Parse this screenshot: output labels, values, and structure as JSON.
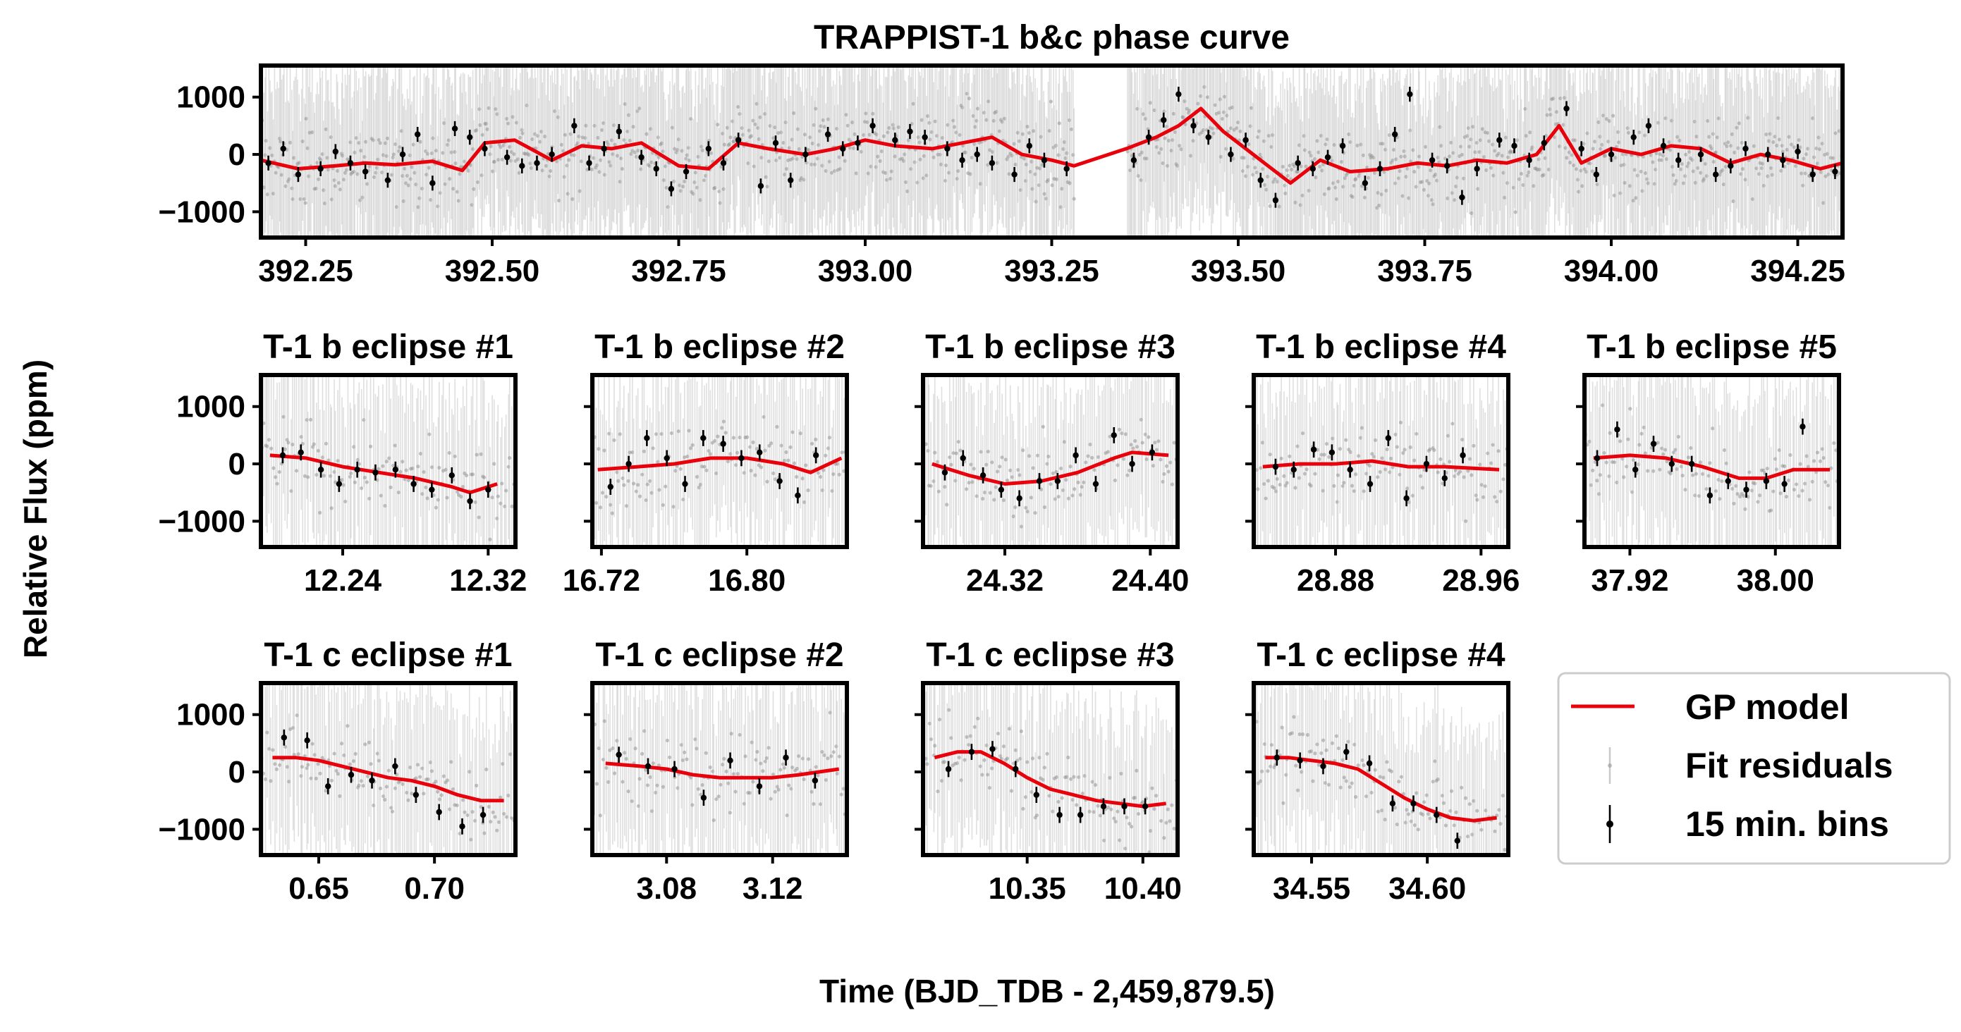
{
  "figure": {
    "y_label": "Relative Flux (ppm)",
    "x_label": "Time (BJD_TDB - 2,459,879.5)"
  },
  "colors": {
    "gp_model": "#e8000b",
    "residuals": "#999999",
    "bins": "#000000",
    "axes": "#000000"
  },
  "legend": {
    "position": "right of bottom row",
    "items": [
      {
        "label": "GP model",
        "kind": "line"
      },
      {
        "label": "Fit residuals",
        "kind": "residual"
      },
      {
        "label": "15 min. bins",
        "kind": "bin"
      }
    ]
  },
  "chart_data": [
    {
      "type": "scatter",
      "title": "TRAPPIST-1 b&c phase curve",
      "xlim": [
        392.19,
        394.31
      ],
      "ylim": [
        -1450,
        1550
      ],
      "xticks": [
        392.25,
        392.5,
        392.75,
        393.0,
        393.25,
        393.5,
        393.75,
        394.0,
        394.25
      ],
      "xtick_labels": [
        "392.25",
        "392.50",
        "392.75",
        "393.00",
        "393.25",
        "393.50",
        "393.75",
        "394.00",
        "394.25"
      ],
      "yticks": [
        1000,
        0,
        -1000
      ],
      "ytick_labels": [
        "1000",
        "0",
        "−1000"
      ],
      "gap": [
        393.28,
        393.35
      ],
      "gp_model": {
        "x": [
          392.19,
          392.24,
          392.29,
          392.33,
          392.37,
          392.42,
          392.46,
          392.49,
          392.53,
          392.58,
          392.62,
          392.66,
          392.7,
          392.75,
          392.79,
          392.83,
          392.87,
          392.92,
          392.96,
          393.0,
          393.04,
          393.09,
          393.13,
          393.17,
          393.21,
          393.25,
          393.28,
          393.35,
          393.39,
          393.42,
          393.45,
          393.48,
          393.51,
          393.54,
          393.57,
          393.61,
          393.65,
          393.7,
          393.74,
          393.78,
          393.82,
          393.86,
          393.9,
          393.93,
          393.96,
          394.0,
          394.04,
          394.08,
          394.12,
          394.16,
          394.2,
          394.24,
          394.28,
          394.31
        ],
        "y": [
          -100,
          -250,
          -200,
          -150,
          -180,
          -120,
          -280,
          200,
          250,
          -100,
          150,
          100,
          200,
          -200,
          -250,
          200,
          100,
          0,
          100,
          250,
          150,
          100,
          200,
          300,
          0,
          -100,
          -200,
          100,
          300,
          500,
          800,
          400,
          100,
          -200,
          -500,
          -100,
          -300,
          -250,
          -150,
          -200,
          -100,
          -150,
          0,
          500,
          -150,
          100,
          0,
          150,
          100,
          -150,
          0,
          -100,
          -250,
          -150
        ]
      },
      "bins": {
        "x": [
          392.2,
          392.22,
          392.24,
          392.27,
          392.29,
          392.31,
          392.33,
          392.36,
          392.38,
          392.4,
          392.42,
          392.45,
          392.47,
          392.49,
          392.52,
          392.54,
          392.56,
          392.58,
          392.61,
          392.63,
          392.65,
          392.67,
          392.7,
          392.72,
          392.74,
          392.76,
          392.79,
          392.81,
          392.83,
          392.86,
          392.88,
          392.9,
          392.92,
          392.95,
          392.97,
          392.99,
          393.01,
          393.04,
          393.06,
          393.08,
          393.11,
          393.13,
          393.15,
          393.17,
          393.2,
          393.22,
          393.24,
          393.27,
          393.36,
          393.38,
          393.4,
          393.42,
          393.44,
          393.46,
          393.49,
          393.51,
          393.53,
          393.55,
          393.58,
          393.6,
          393.62,
          393.64,
          393.67,
          393.69,
          393.71,
          393.73,
          393.76,
          393.78,
          393.8,
          393.82,
          393.85,
          393.87,
          393.89,
          393.91,
          393.94,
          393.96,
          393.98,
          394.0,
          394.03,
          394.05,
          394.07,
          394.09,
          394.12,
          394.14,
          394.16,
          394.18,
          394.21,
          394.23,
          394.25,
          394.27,
          394.3
        ],
        "y": [
          -150,
          100,
          -350,
          -250,
          50,
          -150,
          -300,
          -450,
          0,
          350,
          -500,
          450,
          300,
          100,
          -50,
          -200,
          -150,
          0,
          500,
          -150,
          100,
          400,
          -50,
          -250,
          -600,
          -300,
          100,
          -150,
          250,
          -550,
          200,
          -450,
          0,
          350,
          100,
          200,
          500,
          250,
          400,
          300,
          100,
          -100,
          0,
          -150,
          -350,
          150,
          -100,
          -250,
          -100,
          300,
          600,
          1050,
          500,
          300,
          0,
          250,
          -450,
          -800,
          -150,
          -250,
          -50,
          150,
          -500,
          -250,
          350,
          1050,
          -100,
          -200,
          -750,
          -250,
          250,
          150,
          -100,
          200,
          800,
          100,
          -350,
          0,
          300,
          500,
          150,
          -100,
          0,
          -350,
          -200,
          100,
          0,
          -100,
          50,
          -350,
          -300
        ]
      }
    },
    {
      "type": "scatter",
      "title": "T-1 b eclipse #1",
      "xlim": [
        12.195,
        12.335
      ],
      "ylim": [
        -1450,
        1550
      ],
      "xticks": [
        12.24,
        12.32
      ],
      "xtick_labels": [
        "12.24",
        "12.32"
      ],
      "yticks": [
        1000,
        0,
        -1000
      ],
      "ytick_labels": [
        "1000",
        "0",
        "−1000"
      ],
      "gp_model": {
        "x": [
          12.2,
          12.22,
          12.24,
          12.26,
          12.28,
          12.3,
          12.31,
          12.325
        ],
        "y": [
          150,
          100,
          -50,
          -150,
          -250,
          -400,
          -500,
          -350
        ]
      },
      "bins": {
        "x": [
          12.207,
          12.217,
          12.228,
          12.238,
          12.248,
          12.258,
          12.269,
          12.279,
          12.289,
          12.3,
          12.31,
          12.32
        ],
        "y": [
          150,
          200,
          -100,
          -350,
          -100,
          -150,
          -100,
          -350,
          -450,
          -200,
          -650,
          -450
        ]
      }
    },
    {
      "type": "scatter",
      "title": "T-1 b eclipse #2",
      "xlim": [
        16.715,
        16.855
      ],
      "ylim": [
        -1450,
        1550
      ],
      "xticks": [
        16.72,
        16.8
      ],
      "xtick_labels": [
        "16.72",
        "16.80"
      ],
      "yticks": [
        1000,
        0,
        -1000
      ],
      "ytick_labels": [],
      "gp_model": {
        "x": [
          16.718,
          16.74,
          16.76,
          16.78,
          16.8,
          16.82,
          16.835,
          16.852
        ],
        "y": [
          -100,
          -50,
          0,
          100,
          100,
          0,
          -150,
          100
        ]
      },
      "bins": {
        "x": [
          16.725,
          16.735,
          16.745,
          16.756,
          16.766,
          16.776,
          16.787,
          16.797,
          16.807,
          16.818,
          16.828,
          16.838
        ],
        "y": [
          -400,
          0,
          450,
          100,
          -350,
          450,
          350,
          100,
          200,
          -300,
          -550,
          150
        ]
      }
    },
    {
      "type": "scatter",
      "title": "T-1 b eclipse #3",
      "xlim": [
        24.275,
        24.415
      ],
      "ylim": [
        -1450,
        1550
      ],
      "xticks": [
        24.32,
        24.4
      ],
      "xtick_labels": [
        "24.32",
        "24.40"
      ],
      "yticks": [
        1000,
        0,
        -1000
      ],
      "ytick_labels": [],
      "gp_model": {
        "x": [
          24.28,
          24.3,
          24.32,
          24.34,
          24.36,
          24.38,
          24.39,
          24.41
        ],
        "y": [
          0,
          -200,
          -350,
          -300,
          -150,
          100,
          200,
          150
        ]
      },
      "bins": {
        "x": [
          24.287,
          24.297,
          24.308,
          24.318,
          24.328,
          24.339,
          24.349,
          24.359,
          24.37,
          24.38,
          24.39,
          24.401
        ],
        "y": [
          -150,
          100,
          -200,
          -450,
          -600,
          -300,
          -300,
          150,
          -350,
          500,
          0,
          200
        ]
      }
    },
    {
      "type": "scatter",
      "title": "T-1 b eclipse #4",
      "xlim": [
        28.835,
        28.975
      ],
      "ylim": [
        -1450,
        1550
      ],
      "xticks": [
        28.88,
        28.96
      ],
      "xtick_labels": [
        "28.88",
        "28.96"
      ],
      "yticks": [
        1000,
        0,
        -1000
      ],
      "ytick_labels": [],
      "gp_model": {
        "x": [
          28.84,
          28.86,
          28.88,
          28.9,
          28.92,
          28.94,
          28.97
        ],
        "y": [
          -50,
          0,
          0,
          50,
          -50,
          -50,
          -100
        ]
      },
      "bins": {
        "x": [
          28.847,
          28.857,
          28.868,
          28.878,
          28.888,
          28.899,
          28.909,
          28.919,
          28.93,
          28.94,
          28.95
        ],
        "y": [
          -50,
          -100,
          250,
          200,
          -100,
          -350,
          450,
          -600,
          0,
          -250,
          150
        ]
      }
    },
    {
      "type": "scatter",
      "title": "T-1 b eclipse #5",
      "xlim": [
        37.895,
        38.035
      ],
      "ylim": [
        -1450,
        1550
      ],
      "xticks": [
        37.92,
        38.0
      ],
      "xtick_labels": [
        "37.92",
        "38.00"
      ],
      "yticks": [
        1000,
        0,
        -1000
      ],
      "ytick_labels": [],
      "gp_model": {
        "x": [
          37.9,
          37.92,
          37.94,
          37.96,
          37.98,
          37.995,
          38.01,
          38.03
        ],
        "y": [
          100,
          150,
          100,
          -50,
          -250,
          -250,
          -100,
          -100
        ]
      },
      "bins": {
        "x": [
          37.902,
          37.913,
          37.923,
          37.933,
          37.943,
          37.954,
          37.964,
          37.974,
          37.984,
          37.995,
          38.005,
          38.015
        ],
        "y": [
          100,
          600,
          -100,
          350,
          0,
          0,
          -550,
          -300,
          -450,
          -300,
          -350,
          650
        ]
      }
    },
    {
      "type": "scatter",
      "title": "T-1 c eclipse #1",
      "xlim": [
        0.625,
        0.735
      ],
      "ylim": [
        -1450,
        1550
      ],
      "xticks": [
        0.65,
        0.7
      ],
      "xtick_labels": [
        "0.65",
        "0.70"
      ],
      "yticks": [
        1000,
        0,
        -1000
      ],
      "ytick_labels": [
        "1000",
        "0",
        "−1000"
      ],
      "gp_model": {
        "x": [
          0.63,
          0.64,
          0.65,
          0.66,
          0.67,
          0.68,
          0.69,
          0.7,
          0.71,
          0.72,
          0.73
        ],
        "y": [
          250,
          250,
          200,
          100,
          0,
          -100,
          -150,
          -250,
          -400,
          -500,
          -500
        ]
      },
      "bins": {
        "x": [
          0.635,
          0.645,
          0.654,
          0.664,
          0.673,
          0.683,
          0.692,
          0.702,
          0.712,
          0.721
        ],
        "y": [
          600,
          550,
          -250,
          -50,
          -150,
          100,
          -400,
          -700,
          -950,
          -750
        ]
      }
    },
    {
      "type": "scatter",
      "title": "T-1 c eclipse #2",
      "xlim": [
        3.052,
        3.148
      ],
      "ylim": [
        -1450,
        1550
      ],
      "xticks": [
        3.08,
        3.12
      ],
      "xtick_labels": [
        "3.08",
        "3.12"
      ],
      "yticks": [
        1000,
        0,
        -1000
      ],
      "ytick_labels": [],
      "gp_model": {
        "x": [
          3.057,
          3.07,
          3.08,
          3.09,
          3.1,
          3.11,
          3.12,
          3.13,
          3.145
        ],
        "y": [
          150,
          100,
          50,
          -50,
          -100,
          -100,
          -100,
          -50,
          50
        ]
      },
      "bins": {
        "x": [
          3.062,
          3.073,
          3.083,
          3.094,
          3.104,
          3.115,
          3.125,
          3.136
        ],
        "y": [
          300,
          100,
          50,
          -450,
          200,
          -250,
          250,
          -150
        ]
      }
    },
    {
      "type": "scatter",
      "title": "T-1 c eclipse #3",
      "xlim": [
        10.305,
        10.415
      ],
      "ylim": [
        -1450,
        1550
      ],
      "xticks": [
        10.35,
        10.4
      ],
      "xtick_labels": [
        "10.35",
        "10.40"
      ],
      "yticks": [
        1000,
        0,
        -1000
      ],
      "ytick_labels": [],
      "gp_model": {
        "x": [
          10.31,
          10.32,
          10.33,
          10.34,
          10.35,
          10.36,
          10.37,
          10.38,
          10.39,
          10.4,
          10.41
        ],
        "y": [
          250,
          350,
          350,
          150,
          -100,
          -300,
          -400,
          -500,
          -550,
          -600,
          -550
        ]
      },
      "bins": {
        "x": [
          10.316,
          10.326,
          10.335,
          10.345,
          10.354,
          10.364,
          10.373,
          10.383,
          10.392,
          10.401
        ],
        "y": [
          50,
          350,
          400,
          50,
          -400,
          -750,
          -750,
          -600,
          -600,
          -600
        ]
      }
    },
    {
      "type": "scatter",
      "title": "T-1 c eclipse #4",
      "xlim": [
        34.525,
        34.635
      ],
      "ylim": [
        -1450,
        1550
      ],
      "xticks": [
        34.55,
        34.6
      ],
      "xtick_labels": [
        "34.55",
        "34.60"
      ],
      "yticks": [
        1000,
        0,
        -1000
      ],
      "ytick_labels": [],
      "gp_model": {
        "x": [
          34.53,
          34.54,
          34.55,
          34.56,
          34.57,
          34.58,
          34.59,
          34.6,
          34.61,
          34.62,
          34.63
        ],
        "y": [
          250,
          250,
          200,
          150,
          50,
          -200,
          -450,
          -650,
          -800,
          -850,
          -800
        ]
      },
      "bins": {
        "x": [
          34.535,
          34.545,
          34.555,
          34.565,
          34.575,
          34.585,
          34.594,
          34.604,
          34.613
        ],
        "y": [
          250,
          200,
          100,
          350,
          150,
          -550,
          -550,
          -750,
          -1200
        ]
      }
    }
  ]
}
